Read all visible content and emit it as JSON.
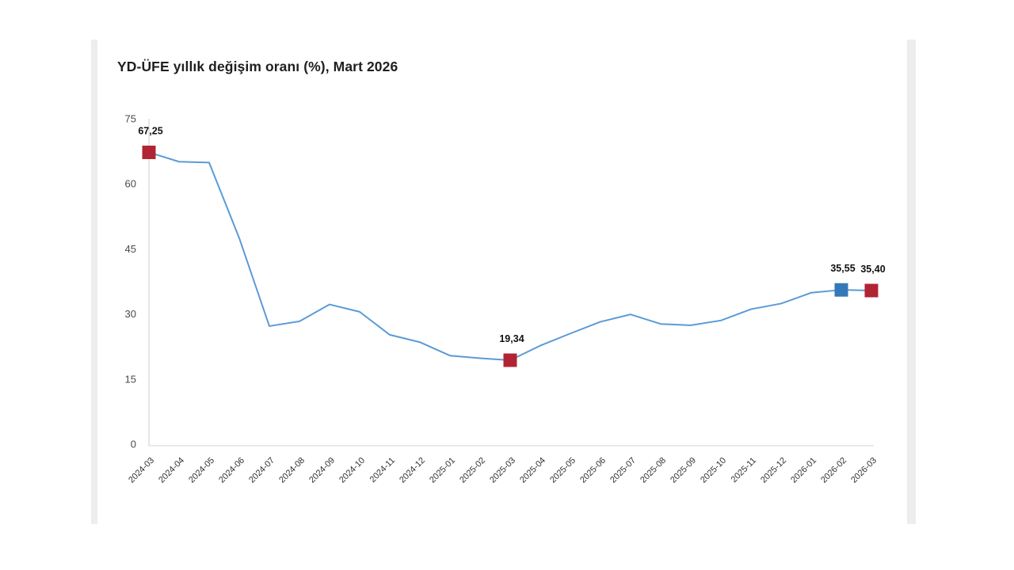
{
  "title": "YD-ÜFE yıllık değişim oranı (%), Mart 2026",
  "chart_data": {
    "type": "line",
    "title": "YD-ÜFE yıllık değişim oranı (%), Mart 2026",
    "x": [
      "2024-03",
      "2024-04",
      "2024-05",
      "2024-06",
      "2024-07",
      "2024-08",
      "2024-09",
      "2024-10",
      "2024-11",
      "2024-12",
      "2025-01",
      "2025-02",
      "2025-03",
      "2025-04",
      "2025-05",
      "2025-06",
      "2025-07",
      "2025-08",
      "2025-09",
      "2025-10",
      "2025-11",
      "2025-12",
      "2026-01",
      "2026-02",
      "2026-03"
    ],
    "values": [
      67.25,
      65.1,
      64.9,
      47.5,
      27.2,
      28.3,
      32.2,
      30.5,
      25.2,
      23.5,
      20.4,
      19.8,
      19.34,
      22.7,
      25.5,
      28.2,
      29.9,
      27.7,
      27.4,
      28.5,
      31.1,
      32.4,
      34.9,
      35.55,
      35.4
    ],
    "y_ticks": [
      "0",
      "15",
      "30",
      "45",
      "60",
      "75"
    ],
    "ylim": [
      0,
      75
    ],
    "grid": "off",
    "legend": "none",
    "line_color": "#5b9bd5",
    "axis_color": "#d9d9d9",
    "tick_label_color": "#4a4a4a",
    "x_label_color": "#333333",
    "data_label_color": "#111111",
    "markers": [
      {
        "index": 0,
        "label": "67,25",
        "color": "#b02433"
      },
      {
        "index": 12,
        "label": "19,34",
        "color": "#b02433"
      },
      {
        "index": 23,
        "label": "35,55",
        "color": "#3379b7"
      },
      {
        "index": 24,
        "label": "35,40",
        "color": "#b02433"
      }
    ]
  }
}
